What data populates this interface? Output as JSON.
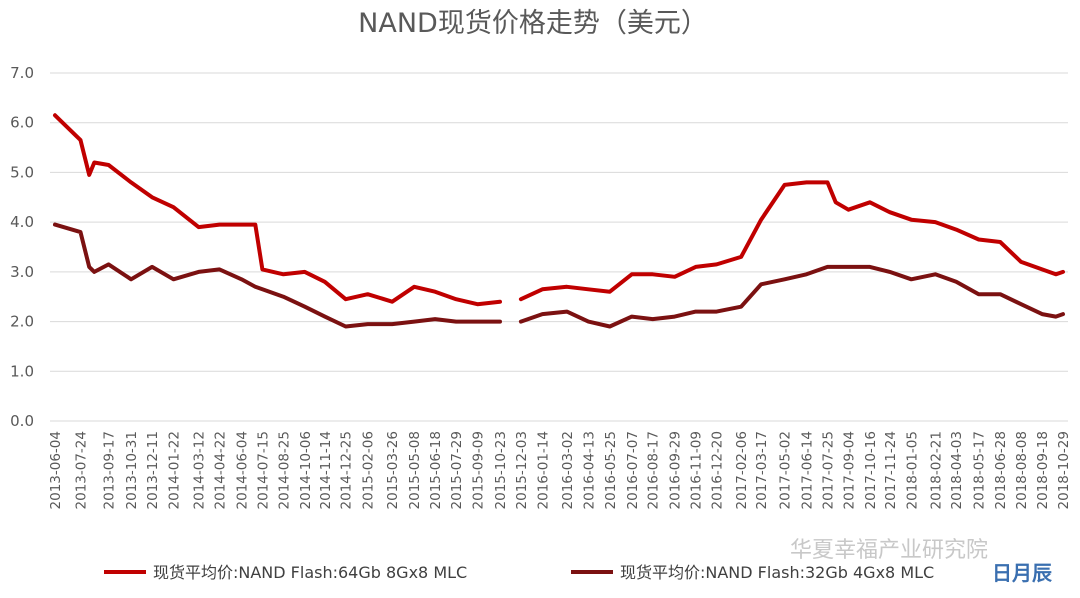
{
  "chart_data": {
    "type": "line",
    "title": "NAND现货价格走势（美元）",
    "xlabel": "",
    "ylabel": "",
    "ylim": [
      0,
      7
    ],
    "yticks": [
      "0.0",
      "1.0",
      "2.0",
      "3.0",
      "4.0",
      "5.0",
      "6.0",
      "7.0"
    ],
    "grid": true,
    "legend_position": "bottom",
    "x_tick_labels": [
      "2013-06-04",
      "2013-07-24",
      "2013-09-17",
      "2013-10-31",
      "2013-12-11",
      "2014-01-22",
      "2014-03-12",
      "2014-04-22",
      "2014-06-04",
      "2014-07-15",
      "2014-08-25",
      "2014-10-06",
      "2014-11-14",
      "2014-12-25",
      "2015-02-06",
      "2015-03-26",
      "2015-05-08",
      "2015-06-18",
      "2015-07-29",
      "2015-09-09",
      "2015-10-23",
      "2015-12-03",
      "2016-01-14",
      "2016-03-02",
      "2016-04-13",
      "2016-05-25",
      "2016-07-07",
      "2016-08-17",
      "2016-09-29",
      "2016-11-09",
      "2016-12-20",
      "2017-02-06",
      "2017-03-17",
      "2017-05-02",
      "2017-06-14",
      "2017-07-25",
      "2017-09-04",
      "2017-10-16",
      "2017-11-24",
      "2018-01-05",
      "2018-02-21",
      "2018-04-03",
      "2018-05-17",
      "2018-06-28",
      "2018-08-08",
      "2018-09-18",
      "2018-10-29"
    ],
    "x": [
      "2013-06-04",
      "2013-07-24",
      "2013-08-10",
      "2013-08-20",
      "2013-09-17",
      "2013-10-31",
      "2013-12-11",
      "2014-01-22",
      "2014-03-12",
      "2014-04-22",
      "2014-06-04",
      "2014-07-01",
      "2014-07-15",
      "2014-08-25",
      "2014-10-06",
      "2014-11-14",
      "2014-12-25",
      "2015-02-06",
      "2015-03-26",
      "2015-05-08",
      "2015-06-18",
      "2015-07-29",
      "2015-09-09",
      "2015-10-23",
      "2015-11-20",
      "2015-12-03",
      "2016-01-14",
      "2016-03-02",
      "2016-04-13",
      "2016-05-25",
      "2016-07-07",
      "2016-08-17",
      "2016-09-29",
      "2016-11-09",
      "2016-12-20",
      "2017-02-06",
      "2017-03-17",
      "2017-05-02",
      "2017-06-14",
      "2017-07-25",
      "2017-08-10",
      "2017-09-04",
      "2017-10-16",
      "2017-11-24",
      "2018-01-05",
      "2018-02-21",
      "2018-04-03",
      "2018-05-17",
      "2018-06-28",
      "2018-08-08",
      "2018-09-18",
      "2018-10-15",
      "2018-10-29"
    ],
    "series": [
      {
        "name": "现货平均价:NAND Flash:64Gb 8Gx8 MLC",
        "color": "#c00000",
        "values": [
          6.15,
          5.65,
          4.95,
          5.2,
          5.15,
          4.8,
          4.5,
          4.3,
          3.9,
          3.95,
          3.95,
          3.95,
          3.05,
          2.95,
          3.0,
          2.8,
          2.45,
          2.55,
          2.4,
          2.7,
          2.6,
          2.45,
          2.35,
          2.4,
          null,
          2.45,
          2.65,
          2.7,
          2.65,
          2.6,
          2.95,
          2.95,
          2.9,
          3.1,
          3.15,
          3.3,
          4.05,
          4.75,
          4.8,
          4.8,
          4.4,
          4.25,
          4.4,
          4.2,
          4.05,
          4.0,
          3.85,
          3.65,
          3.6,
          3.2,
          3.05,
          2.95,
          3.0
        ]
      },
      {
        "name": "现货平均价:NAND Flash:32Gb 4Gx8 MLC",
        "color": "#7b1111",
        "values": [
          3.95,
          3.8,
          3.1,
          3.0,
          3.15,
          2.85,
          3.1,
          2.85,
          3.0,
          3.05,
          2.85,
          2.7,
          2.65,
          2.5,
          2.3,
          2.1,
          1.9,
          1.95,
          1.95,
          2.0,
          2.05,
          2.0,
          2.0,
          2.0,
          null,
          2.0,
          2.15,
          2.2,
          2.0,
          1.9,
          2.1,
          2.05,
          2.1,
          2.2,
          2.2,
          2.3,
          2.75,
          2.85,
          2.95,
          3.1,
          3.1,
          3.1,
          3.1,
          3.0,
          2.85,
          2.95,
          2.8,
          2.55,
          2.55,
          2.35,
          2.15,
          2.1,
          2.15
        ]
      }
    ]
  },
  "watermark": {
    "text": "华夏幸福产业研究院",
    "logo_text": "日月辰"
  }
}
